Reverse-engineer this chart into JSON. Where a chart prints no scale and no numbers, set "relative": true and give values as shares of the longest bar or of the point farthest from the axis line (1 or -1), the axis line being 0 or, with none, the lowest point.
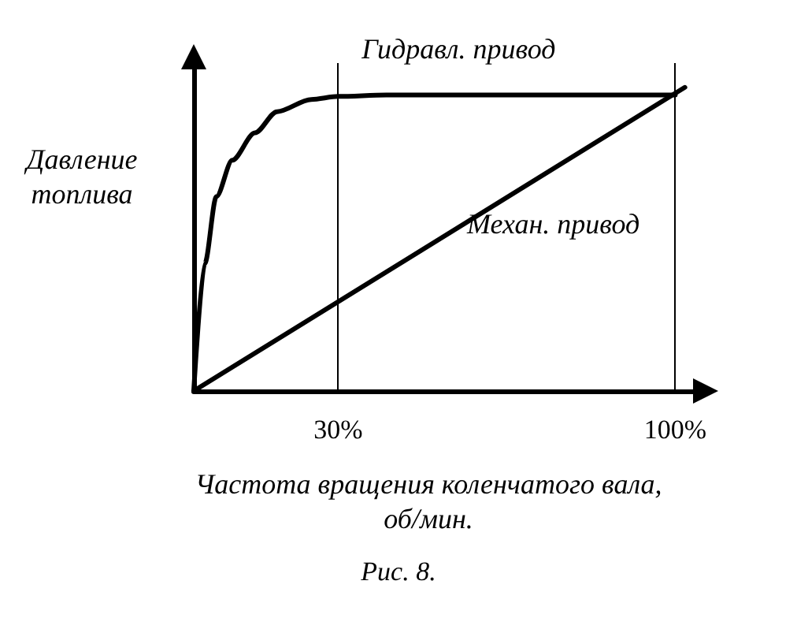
{
  "chart_data": {
    "type": "line",
    "relative": true,
    "xlabel": "Частота вращения коленчатого вала, об/мин.",
    "ylabel": "Давление топлива",
    "xlim": [
      0,
      105
    ],
    "xticks": [
      {
        "value": 30,
        "label": "30%"
      },
      {
        "value": 100,
        "label": "100%"
      }
    ],
    "series": [
      {
        "name": "Гидравл. привод",
        "color": "#000000",
        "x": [
          0,
          2.3,
          4.7,
          8,
          12.7,
          17.3,
          24.4,
          30,
          40,
          100
        ],
        "values": [
          0,
          0.42,
          0.64,
          0.76,
          0.85,
          0.92,
          0.96,
          0.97,
          0.975,
          0.975
        ]
      },
      {
        "name": "Механ. привод",
        "color": "#000000",
        "x": [
          0,
          102
        ],
        "values": [
          0,
          1
        ]
      }
    ],
    "ref_lines": [
      {
        "axis": "x",
        "value": 30,
        "label": null
      },
      {
        "axis": "x",
        "value": 100,
        "label": null
      }
    ],
    "annotations": [
      "Рис. 8."
    ],
    "legend": false,
    "marker": "none",
    "line_style": "solid"
  }
}
